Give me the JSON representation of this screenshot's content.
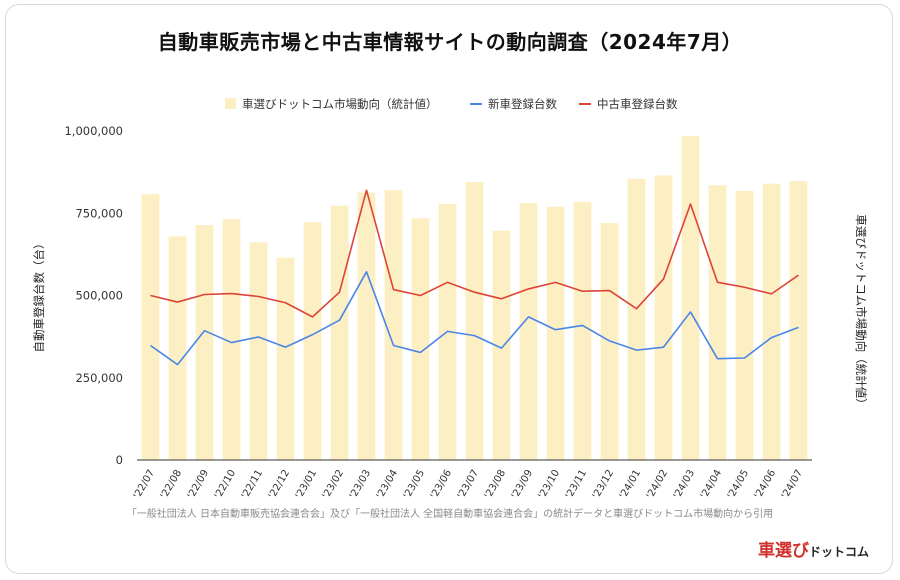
{
  "title": "自動車販売市場と中古車情報サイトの動向調査（2024年7月）",
  "footer": "「一般社団法人 日本自動車販売協会連合会」及び「一般社団法人 全国軽自動車協会連合会」の統計データと車選びドットコム市場動向から引用",
  "logo": {
    "main": "車選び",
    "sub": "ドットコム"
  },
  "colors": {
    "bar": "#fdefc4",
    "new": "#4a86e8",
    "used": "#db4437",
    "axis": "#333333",
    "grid": "#e6e6e6"
  },
  "chart_data": {
    "type": "bar",
    "categories": [
      "'22/07",
      "'22/08",
      "'22/09",
      "'22/10",
      "'22/11",
      "'22/12",
      "'23/01",
      "'23/02",
      "'23/03",
      "'23/04",
      "'23/05",
      "'23/06",
      "'23/07",
      "'23/08",
      "'23/09",
      "'23/10",
      "'23/11",
      "'23/12",
      "'24/01",
      "'24/02",
      "'24/03",
      "'24/04",
      "'24/05",
      "'24/06",
      "'24/07"
    ],
    "series": [
      {
        "name": "車選びドットコム市場動向（統計値）",
        "type": "bar",
        "axis": "right",
        "values": [
          808000,
          680000,
          714000,
          732000,
          662000,
          615000,
          723000,
          773000,
          813000,
          820000,
          735000,
          778000,
          845000,
          697000,
          781000,
          770000,
          785000,
          720000,
          855000,
          865000,
          985000,
          835000,
          818000,
          840000,
          848000
        ]
      },
      {
        "name": "新車登録台数",
        "type": "line",
        "axis": "left",
        "values": [
          348000,
          290000,
          393000,
          357000,
          374000,
          343000,
          381000,
          425000,
          572000,
          348000,
          327000,
          391000,
          378000,
          340000,
          435000,
          396000,
          409000,
          362000,
          334000,
          343000,
          450000,
          308000,
          310000,
          372000,
          403000
        ]
      },
      {
        "name": "中古車登録台数",
        "type": "line",
        "axis": "left",
        "values": [
          500000,
          480000,
          503000,
          506000,
          497000,
          478000,
          435000,
          510000,
          820000,
          518000,
          500000,
          540000,
          510000,
          490000,
          520000,
          540000,
          513000,
          515000,
          460000,
          550000,
          778000,
          540000,
          525000,
          505000,
          562000
        ]
      }
    ],
    "ylabel": "自動車登録台数（台）",
    "ylabel_right": "車選びドットコム市場動向（統計値）",
    "ylim": [
      0,
      1000000
    ],
    "yticks": [
      0,
      250000,
      500000,
      750000,
      1000000
    ],
    "ytick_labels": [
      "0",
      "250,000",
      "500,000",
      "750,000",
      "1,000,000"
    ],
    "grid": false,
    "legend": "top"
  }
}
